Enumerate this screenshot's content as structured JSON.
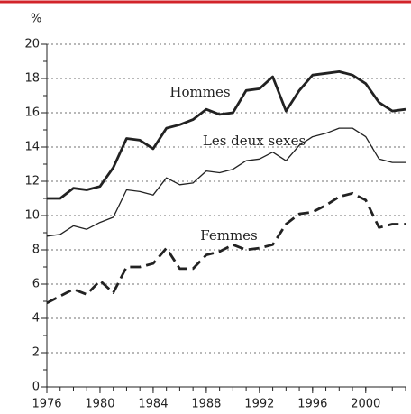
{
  "chart_data": {
    "type": "line",
    "unit_label": "%",
    "x": [
      1976,
      1977,
      1978,
      1979,
      1980,
      1981,
      1982,
      1983,
      1984,
      1985,
      1986,
      1987,
      1988,
      1989,
      1990,
      1991,
      1992,
      1993,
      1994,
      1995,
      1996,
      1997,
      1998,
      1999,
      2000,
      2001,
      2002,
      2003
    ],
    "series": [
      {
        "name": "Hommes",
        "color": "#222222",
        "style": "solid-thick",
        "values": [
          11.0,
          11.0,
          11.6,
          11.5,
          11.7,
          12.8,
          14.5,
          14.4,
          13.9,
          15.1,
          15.3,
          15.6,
          16.2,
          15.9,
          16.0,
          17.3,
          17.4,
          18.1,
          16.1,
          17.3,
          18.2,
          18.3,
          18.4,
          18.2,
          17.7,
          16.6,
          16.1,
          16.2
        ]
      },
      {
        "name": "Les deux sexes",
        "color": "#222222",
        "style": "solid-thin",
        "values": [
          8.8,
          8.9,
          9.4,
          9.2,
          9.6,
          9.9,
          11.5,
          11.4,
          11.2,
          12.2,
          11.8,
          11.9,
          12.6,
          12.5,
          12.7,
          13.2,
          13.3,
          13.7,
          13.2,
          14.1,
          14.6,
          14.8,
          15.1,
          15.1,
          14.6,
          13.3,
          13.1,
          13.1
        ]
      },
      {
        "name": "Femmes",
        "color": "#222222",
        "style": "dashed-thick",
        "values": [
          4.9,
          5.3,
          5.7,
          5.4,
          6.2,
          5.5,
          7.0,
          7.0,
          7.2,
          8.1,
          6.9,
          6.9,
          7.7,
          7.9,
          8.3,
          8.0,
          8.1,
          8.3,
          9.5,
          10.1,
          10.2,
          10.6,
          11.1,
          11.3,
          10.9,
          9.3,
          9.5,
          9.5
        ]
      }
    ],
    "xlim": [
      1976,
      2003
    ],
    "xticks": [
      1976,
      1980,
      1984,
      1988,
      1992,
      1996,
      2000
    ],
    "ylim": [
      0,
      20
    ],
    "yticks": [
      0,
      2,
      4,
      6,
      8,
      10,
      12,
      14,
      16,
      18,
      20
    ],
    "grid": true
  }
}
